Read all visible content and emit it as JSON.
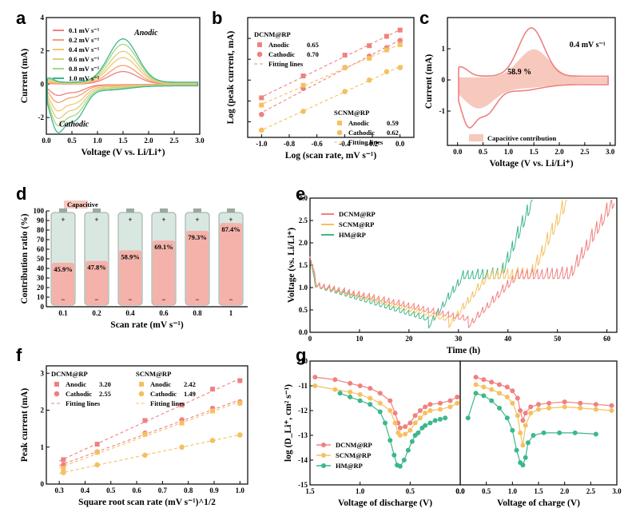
{
  "colors": {
    "dcnm": "#f08080",
    "scnm": "#f5c060",
    "hm": "#3cb88a",
    "capacitive_fill": "#f7c8bc",
    "cv": [
      "#f08080",
      "#f3a070",
      "#f0c870",
      "#d8d080",
      "#a8d488",
      "#3cb88a"
    ]
  },
  "panel_labels": [
    "a",
    "b",
    "c",
    "d",
    "e",
    "f",
    "g"
  ],
  "chart_data": [
    {
      "id": "a",
      "type": "line",
      "xlabel": "Voltage (V vs. Li/Li⁺)",
      "ylabel": "Current (mA)",
      "xlim": [
        0,
        3
      ],
      "ylim": [
        -3,
        4
      ],
      "xticks": [
        "0.0",
        "0.5",
        "1.0",
        "1.5",
        "2.0",
        "2.5",
        "3.0"
      ],
      "yticks": [
        "-2",
        "0",
        "2",
        "4"
      ],
      "annotations": [
        "Anodic",
        "Cathodic"
      ],
      "series": [
        {
          "name": "0.1 mV s⁻¹",
          "rate": 0.1,
          "anodic_peak": [
            1.5,
            0.75
          ],
          "cathodic_peaks": [
            [
              0.2,
              -0.55
            ],
            [
              0.55,
              -0.45
            ]
          ]
        },
        {
          "name": "0.2 mV s⁻¹",
          "rate": 0.2,
          "anodic_peak": [
            1.5,
            1.1
          ],
          "cathodic_peaks": [
            [
              0.2,
              -0.9
            ],
            [
              0.55,
              -0.7
            ]
          ]
        },
        {
          "name": "0.4 mV s⁻¹",
          "rate": 0.4,
          "anodic_peak": [
            1.5,
            1.55
          ],
          "cathodic_peaks": [
            [
              0.2,
              -1.3
            ],
            [
              0.55,
              -1.05
            ]
          ]
        },
        {
          "name": "0.6 mV s⁻¹",
          "rate": 0.6,
          "anodic_peak": [
            1.5,
            1.9
          ],
          "cathodic_peaks": [
            [
              0.2,
              -1.65
            ],
            [
              0.55,
              -1.35
            ]
          ]
        },
        {
          "name": "0.8 mV s⁻¹",
          "rate": 0.8,
          "anodic_peak": [
            1.5,
            2.3
          ],
          "cathodic_peaks": [
            [
              0.2,
              -2.0
            ],
            [
              0.55,
              -1.65
            ]
          ]
        },
        {
          "name": "1.0 mV s⁻¹",
          "rate": 1.0,
          "anodic_peak": [
            1.5,
            2.6
          ],
          "cathodic_peaks": [
            [
              0.2,
              -2.3
            ],
            [
              0.55,
              -1.95
            ]
          ]
        }
      ]
    },
    {
      "id": "b",
      "type": "scatter",
      "xlabel": "Log (scan rate, mV s⁻¹)",
      "ylabel": "Log (peak current, mA)",
      "xlim": [
        -1.1,
        0.1
      ],
      "ylim": [
        -0.55,
        0.6
      ],
      "xticks": [
        "-1.0",
        "-0.8",
        "-0.6",
        "-0.4",
        "-0.2",
        "0.0"
      ],
      "x": [
        -1.0,
        -0.699,
        -0.398,
        -0.222,
        -0.097,
        0.0
      ],
      "groups": [
        {
          "title": "DCNM@RP",
          "fit_label": "Fitting lines",
          "series": [
            {
              "name": "Anodic",
              "b_value": "0.65",
              "y": [
                -0.17,
                0.04,
                0.24,
                0.33,
                0.42,
                0.48
              ]
            },
            {
              "name": "Cathodic",
              "b_value": "0.70",
              "y": [
                -0.33,
                -0.08,
                0.12,
                0.23,
                0.31,
                0.38
              ]
            }
          ]
        },
        {
          "title": "SCNM@RP",
          "fit_label": "Fitting lines",
          "series": [
            {
              "name": "Anodic",
              "b_value": "0.59",
              "y": [
                -0.24,
                -0.05,
                0.12,
                0.21,
                0.29,
                0.34
              ]
            },
            {
              "name": "Cathodic",
              "b_value": "0.62",
              "y": [
                -0.48,
                -0.3,
                -0.11,
                0.0,
                0.08,
                0.12
              ]
            }
          ]
        }
      ]
    },
    {
      "id": "c",
      "type": "area",
      "xlabel": "Voltage (V vs. Li/Li⁺)",
      "ylabel": "Current (mA)",
      "xlim": [
        -0.2,
        3.1
      ],
      "ylim": [
        -2.1,
        2.0
      ],
      "xticks": [
        "0.0",
        "0.5",
        "1.0",
        "1.5",
        "2.0",
        "2.5",
        "3.0"
      ],
      "yticks": [
        "-1",
        "0",
        "1"
      ],
      "scan_rate_label": "0.4 mV s⁻¹",
      "percent_label": "58.9 %",
      "legend": "Capacitive contribution"
    },
    {
      "id": "d",
      "type": "bar",
      "xlabel": "Scan rate (mV s⁻¹)",
      "ylabel": "Contribution ratio (%)",
      "ylim": [
        0,
        100
      ],
      "yticks": [
        "0",
        "10",
        "20",
        "30",
        "40",
        "50",
        "60",
        "70",
        "80",
        "90",
        "100"
      ],
      "legend": "Capacitive",
      "categories": [
        "0.1",
        "0.2",
        "0.4",
        "0.6",
        "0.8",
        "1"
      ],
      "values": [
        45.9,
        47.8,
        58.9,
        69.1,
        79.3,
        87.4
      ],
      "value_labels": [
        "45.9%",
        "47.8%",
        "58.9%",
        "69.1%",
        "79.3%",
        "87.4%"
      ]
    },
    {
      "id": "e",
      "type": "scatter",
      "xlabel": "Square root scan rate (mV s⁻¹)^1/2",
      "ylabel": "Peak current (mA)",
      "xlim": [
        0.25,
        1.03
      ],
      "ylim": [
        0,
        3.2
      ],
      "xticks": [
        "0.3",
        "0.4",
        "0.5",
        "0.6",
        "0.7",
        "0.8",
        "0.9",
        "1.0"
      ],
      "yticks": [
        "0",
        "1",
        "2",
        "3"
      ],
      "x": [
        0.316,
        0.447,
        0.632,
        0.775,
        0.894,
        1.0
      ],
      "groups": [
        {
          "title": "DCNM@RP",
          "fit_label": "Fitting lines",
          "series": [
            {
              "name": "Anodic",
              "slope": "3.20",
              "y": [
                0.66,
                1.08,
                1.72,
                2.14,
                2.57,
                2.8
              ]
            },
            {
              "name": "Cathodic",
              "slope": "2.55",
              "y": [
                0.52,
                0.87,
                1.38,
                1.74,
                2.05,
                2.22
              ]
            }
          ]
        },
        {
          "title": "SCNM@RP",
          "fit_label": "Fitting lines",
          "series": [
            {
              "name": "Anodic",
              "slope": "2.42",
              "y": [
                0.42,
                0.86,
                1.35,
                1.65,
                1.98,
                2.19
              ]
            },
            {
              "name": "Cathodic",
              "slope": "1.49",
              "y": [
                0.31,
                0.52,
                0.78,
                1.0,
                1.18,
                1.33
              ]
            }
          ]
        }
      ]
    },
    {
      "id": "f",
      "type": "line",
      "xlabel": "Time (h)",
      "ylabel": "Voltage (vs. Li/Li⁺)",
      "xlim": [
        0,
        62
      ],
      "ylim": [
        0,
        3
      ],
      "xticks": [
        "0",
        "10",
        "20",
        "30",
        "40",
        "50",
        "60"
      ],
      "yticks": [
        "0.0",
        "0.5",
        "1.0",
        "1.5",
        "2.0",
        "2.5",
        "3.0"
      ],
      "series": [
        {
          "name": "DCNM@RP",
          "discharge_end_h": 32,
          "charge_end_h": 61.5
        },
        {
          "name": "SCNM@RP",
          "discharge_end_h": 28,
          "charge_end_h": 52
        },
        {
          "name": "HM@RP",
          "discharge_end_h": 24,
          "charge_end_h": 45
        }
      ]
    },
    {
      "id": "g",
      "type": "line",
      "ylabel": "log (D_Li⁺, cm² s⁻¹)",
      "ylim": [
        -15,
        -10
      ],
      "yticks": [
        "-15",
        "-14",
        "-13",
        "-12",
        "-11",
        "-10"
      ],
      "discharge": {
        "xlabel": "Voltage of discharge (V)",
        "xlim": [
          1.5,
          0.0
        ],
        "xticks": [
          "1.5",
          "1.0",
          "0.5",
          "0.0"
        ],
        "series": [
          {
            "name": "DCNM@RP",
            "x": [
              1.45,
              1.25,
              1.1,
              1.0,
              0.9,
              0.8,
              0.7,
              0.65,
              0.62,
              0.6,
              0.55,
              0.5,
              0.45,
              0.4,
              0.35,
              0.3,
              0.2,
              0.1,
              0.03
            ],
            "y": [
              -10.65,
              -10.75,
              -10.9,
              -11.0,
              -11.1,
              -11.3,
              -11.6,
              -12.1,
              -12.5,
              -12.7,
              -12.65,
              -12.5,
              -12.2,
              -12.0,
              -11.85,
              -11.75,
              -11.7,
              -11.6,
              -11.45
            ]
          },
          {
            "name": "SCNM@RP",
            "x": [
              1.45,
              1.25,
              1.1,
              1.0,
              0.9,
              0.8,
              0.7,
              0.65,
              0.62,
              0.6,
              0.55,
              0.5,
              0.45,
              0.4,
              0.35,
              0.3,
              0.2,
              0.1,
              0.03
            ],
            "y": [
              -11.0,
              -11.15,
              -11.25,
              -11.35,
              -11.5,
              -11.7,
              -12.0,
              -12.5,
              -12.9,
              -13.0,
              -12.95,
              -12.8,
              -12.5,
              -12.3,
              -12.1,
              -12.0,
              -11.95,
              -11.85,
              -11.7
            ]
          },
          {
            "name": "HM@RP",
            "x": [
              1.2,
              1.1,
              1.0,
              0.9,
              0.8,
              0.75,
              0.7,
              0.66,
              0.63,
              0.6,
              0.56,
              0.52,
              0.48,
              0.45,
              0.42,
              0.38,
              0.35,
              0.3,
              0.25,
              0.2,
              0.15
            ],
            "y": [
              -11.3,
              -11.45,
              -11.6,
              -11.75,
              -12.05,
              -12.5,
              -13.2,
              -13.8,
              -14.2,
              -14.25,
              -14.0,
              -13.6,
              -13.25,
              -13.0,
              -12.9,
              -12.7,
              -12.6,
              -12.5,
              -12.4,
              -12.35,
              -12.3
            ]
          }
        ]
      },
      "charge": {
        "xlabel": "Voltage of charge (V)",
        "xlim": [
          0.0,
          3.0
        ],
        "xticks": [
          "0.0",
          "0.5",
          "1.0",
          "1.5",
          "2.0",
          "2.5",
          "3.0"
        ],
        "series": [
          {
            "name": "DCNM@RP",
            "x": [
              0.3,
              0.45,
              0.6,
              0.75,
              0.9,
              1.0,
              1.1,
              1.15,
              1.2,
              1.25,
              1.35,
              1.5,
              1.7,
              2.0,
              2.3,
              2.6,
              2.9
            ],
            "y": [
              -10.65,
              -10.75,
              -10.85,
              -10.95,
              -11.05,
              -11.2,
              -11.5,
              -12.0,
              -12.4,
              -12.1,
              -11.85,
              -11.75,
              -11.7,
              -11.65,
              -11.7,
              -11.75,
              -11.8
            ]
          },
          {
            "name": "SCNM@RP",
            "x": [
              0.3,
              0.45,
              0.6,
              0.75,
              0.9,
              1.0,
              1.1,
              1.15,
              1.2,
              1.25,
              1.35,
              1.5,
              1.7,
              2.0,
              2.3,
              2.6,
              2.9
            ],
            "y": [
              -10.95,
              -11.05,
              -11.15,
              -11.3,
              -11.45,
              -11.7,
              -12.2,
              -12.9,
              -13.4,
              -12.6,
              -12.1,
              -11.95,
              -11.9,
              -11.85,
              -11.9,
              -11.95,
              -12.0
            ]
          },
          {
            "name": "HM@RP",
            "x": [
              0.15,
              0.3,
              0.45,
              0.6,
              0.75,
              0.9,
              1.0,
              1.08,
              1.15,
              1.2,
              1.25,
              1.3,
              1.4,
              1.6,
              1.9,
              2.2,
              2.6
            ],
            "y": [
              -12.3,
              -11.3,
              -11.4,
              -11.6,
              -11.9,
              -12.3,
              -12.8,
              -13.6,
              -14.1,
              -14.2,
              -13.9,
              -13.3,
              -13.0,
              -12.9,
              -12.9,
              -12.9,
              -12.95
            ]
          }
        ]
      }
    }
  ]
}
